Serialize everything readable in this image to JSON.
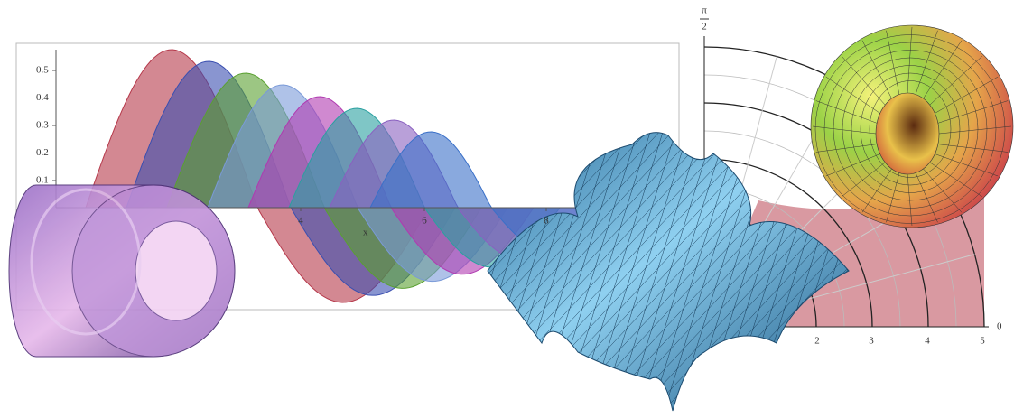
{
  "bessel_plot": {
    "yticks": [
      "0.5",
      "0.4",
      "0.3",
      "0.2",
      "0.1"
    ],
    "xticks": [
      "4",
      "6",
      "8"
    ],
    "xlabel": "x"
  },
  "polar_plot": {
    "top_angle": {
      "numerator": "π",
      "denominator": "2"
    },
    "right_angle": "0",
    "radius_ticks": [
      "2",
      "3",
      "4",
      "5"
    ]
  }
}
